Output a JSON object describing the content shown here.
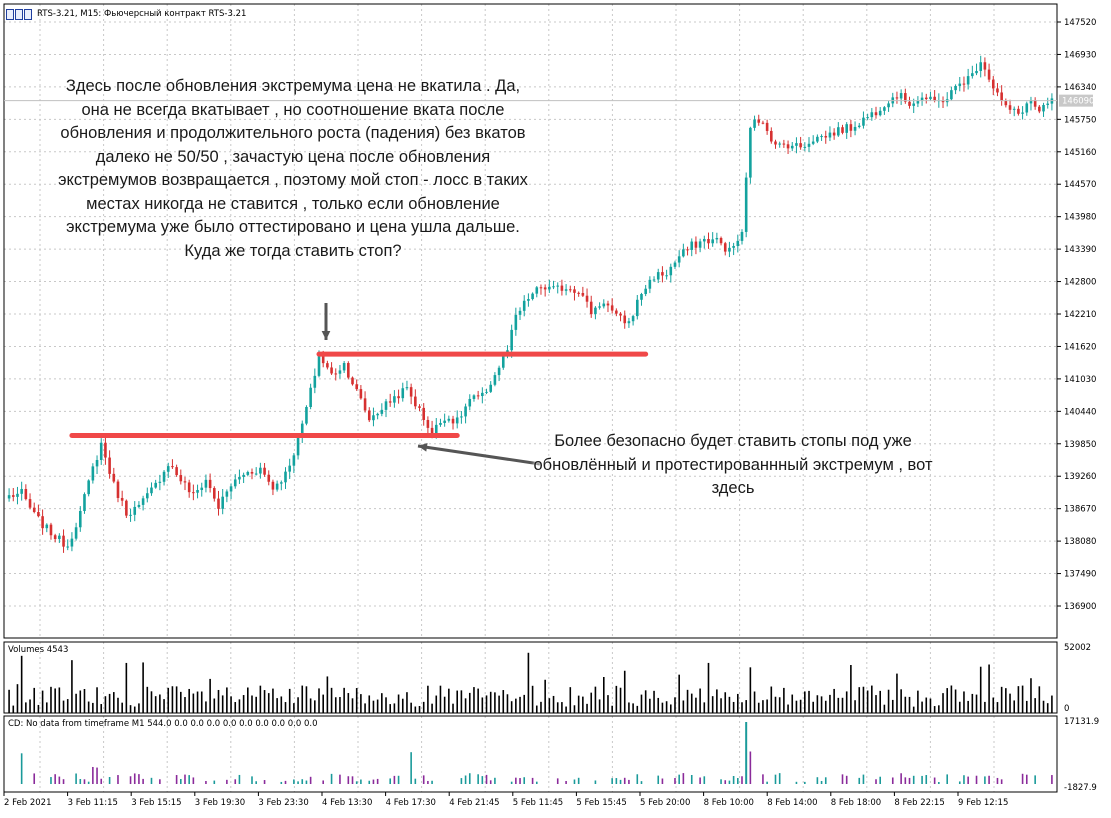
{
  "window": {
    "title": "RTS-3.21, M15:  Фьючерсный контракт RTS-3.21"
  },
  "annotations": {
    "top_text": "Здесь после обновления экстремума цена не вкатила . Да, она не всегда вкатывает , но соотношение вката после обновления и продолжительного роста (падения) без вкатов далеко не 50/50 , зачастую цена после обновления экстремумов возвращается , поэтому мой стоп - лосс в таких местах никогда не ставится , только если обновление экстремума  уже было оттестировано и цена ушла дальше. Куда же тогда ставить стоп?",
    "right_text": "Более безопасно будет ставить стопы под уже обновлённый и протестированнный экстремум , вот здесь"
  },
  "colors": {
    "bull": "#13a29e",
    "bear": "#d63030",
    "level_line": "#f04848",
    "arrow": "#555555",
    "volume": "#000000",
    "cd_teal": "#1a9a9a",
    "cd_purple": "#8a2a9a"
  },
  "chart_data": [
    {
      "type": "candlestick",
      "name": "price",
      "timeframe": "M15",
      "ylim": [
        136900,
        147520
      ],
      "y_ticks": [
        "147520",
        "146930",
        "146340",
        "145750",
        "145160",
        "144570",
        "143980",
        "143390",
        "142800",
        "142210",
        "141620",
        "141030",
        "140440",
        "139850",
        "139260",
        "138670",
        "138080",
        "137490",
        "136900"
      ],
      "current_price": "146090",
      "x_ticks": [
        "2 Feb 2021",
        "3 Feb 11:15",
        "3 Feb 15:15",
        "3 Feb 19:30",
        "3 Feb 23:30",
        "4 Feb 13:30",
        "4 Feb 17:30",
        "4 Feb 21:45",
        "5 Feb 11:45",
        "5 Feb 15:45",
        "5 Feb 20:00",
        "8 Feb 10:00",
        "8 Feb 14:00",
        "8 Feb 18:00",
        "8 Feb 22:15",
        "9 Feb 12:15"
      ],
      "anchors": [
        [
          0,
          138900
        ],
        [
          3,
          138950
        ],
        [
          6,
          138550
        ],
        [
          9,
          138300
        ],
        [
          12,
          138100
        ],
        [
          14,
          138000
        ],
        [
          17,
          138600
        ],
        [
          20,
          139400
        ],
        [
          22,
          139850
        ],
        [
          25,
          139100
        ],
        [
          28,
          138600
        ],
        [
          31,
          138700
        ],
        [
          35,
          139100
        ],
        [
          38,
          139500
        ],
        [
          41,
          139200
        ],
        [
          44,
          138900
        ],
        [
          47,
          139200
        ],
        [
          50,
          138700
        ],
        [
          53,
          139100
        ],
        [
          56,
          139300
        ],
        [
          60,
          139400
        ],
        [
          63,
          139050
        ],
        [
          66,
          139300
        ],
        [
          69,
          139900
        ],
        [
          72,
          140800
        ],
        [
          74,
          141450
        ],
        [
          77,
          141100
        ],
        [
          80,
          141300
        ],
        [
          83,
          140800
        ],
        [
          86,
          140300
        ],
        [
          89,
          140500
        ],
        [
          92,
          140700
        ],
        [
          95,
          140850
        ],
        [
          98,
          140450
        ],
        [
          101,
          140050
        ],
        [
          104,
          140350
        ],
        [
          107,
          140250
        ],
        [
          110,
          140650
        ],
        [
          113,
          140700
        ],
        [
          116,
          141100
        ],
        [
          119,
          141550
        ],
        [
          121,
          142150
        ],
        [
          124,
          142500
        ],
        [
          127,
          142700
        ],
        [
          130,
          142650
        ],
        [
          133,
          142700
        ],
        [
          136,
          142650
        ],
        [
          139,
          142250
        ],
        [
          142,
          142450
        ],
        [
          145,
          142150
        ],
        [
          148,
          142050
        ],
        [
          151,
          142600
        ],
        [
          154,
          142900
        ],
        [
          157,
          142950
        ],
        [
          160,
          143250
        ],
        [
          163,
          143450
        ],
        [
          166,
          143550
        ],
        [
          169,
          143550
        ],
        [
          172,
          143350
        ],
        [
          175,
          143650
        ],
        [
          177,
          145650
        ],
        [
          180,
          145750
        ],
        [
          183,
          145250
        ],
        [
          186,
          145300
        ],
        [
          189,
          145250
        ],
        [
          192,
          145400
        ],
        [
          195,
          145450
        ],
        [
          198,
          145550
        ],
        [
          201,
          145600
        ],
        [
          204,
          145750
        ],
        [
          207,
          145900
        ],
        [
          209,
          146050
        ],
        [
          212,
          146200
        ],
        [
          215,
          146050
        ],
        [
          218,
          146150
        ],
        [
          221,
          146050
        ],
        [
          224,
          146150
        ],
        [
          227,
          146400
        ],
        [
          230,
          146550
        ],
        [
          232,
          146850
        ],
        [
          235,
          146350
        ],
        [
          238,
          145950
        ],
        [
          241,
          145850
        ],
        [
          244,
          146100
        ],
        [
          246,
          145850
        ],
        [
          249,
          146100
        ]
      ],
      "bars": 250
    },
    {
      "type": "bar",
      "name": "Volumes",
      "label": "Volumes 4543",
      "ylim": [
        0,
        52002
      ],
      "y_ticks": [
        "52002",
        "0"
      ]
    },
    {
      "type": "bar",
      "name": "CD",
      "label": "CD: No data from timeframe M1  544.0 0.0 0.0 0.0 0.0 0.0 0.0 0.0 0.0 0.0",
      "ylim": [
        -1827.9,
        17131.9
      ],
      "y_ticks": [
        "17131.9",
        "-1827.9"
      ]
    }
  ],
  "levels": [
    {
      "name": "upper-extremum-line",
      "price": 141480,
      "from_bar": 74,
      "to_bar": 152
    },
    {
      "name": "lower-extremum-line",
      "price": 140000,
      "from_bar": 15,
      "to_bar": 107
    }
  ]
}
